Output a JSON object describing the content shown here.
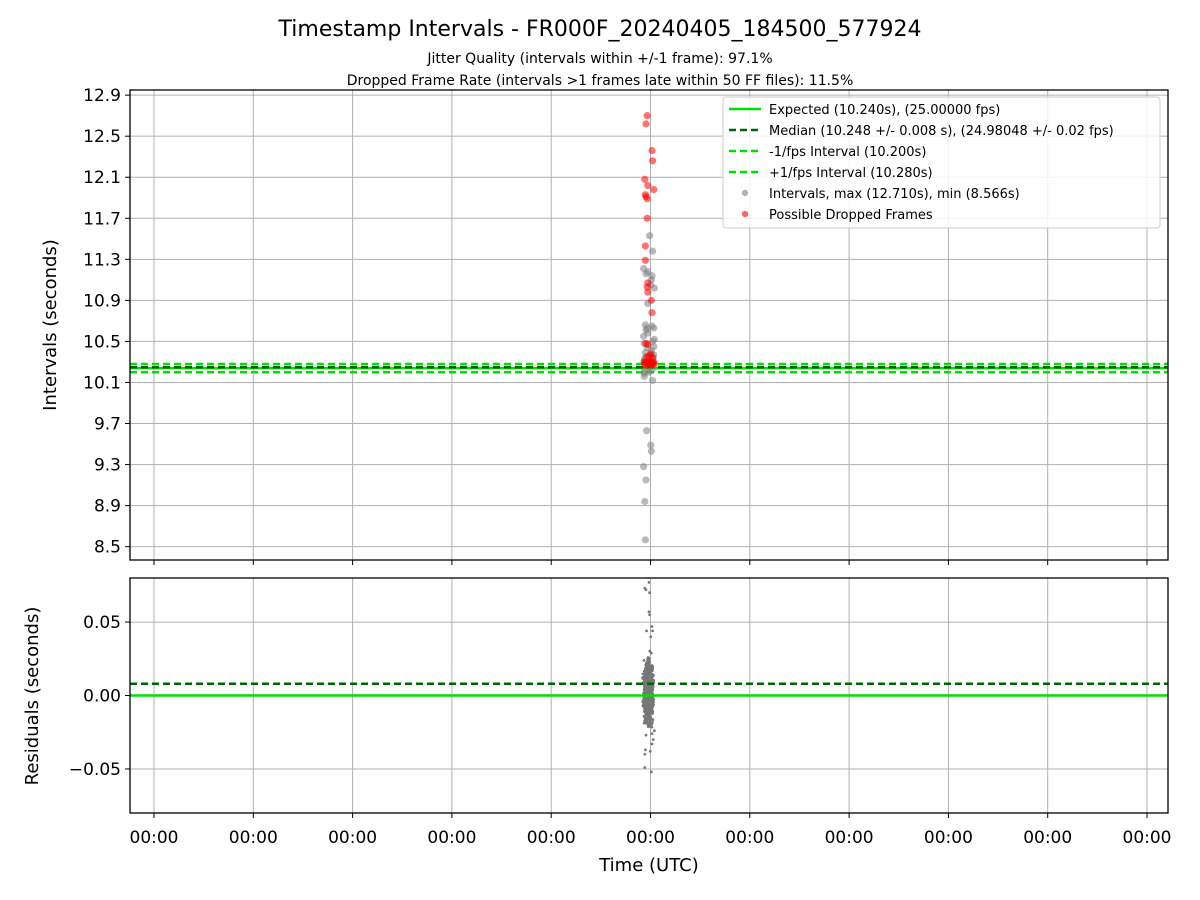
{
  "figure": {
    "title": "Timestamp Intervals - FR000F_20240405_184500_577924",
    "subtitle_1": "Jitter Quality (intervals within +/-1 frame): 97.1%",
    "subtitle_2": "Dropped Frame Rate (intervals >1 frames late within 50 FF files): 11.5%"
  },
  "chart_data": [
    {
      "type": "scatter",
      "panel": "intervals",
      "xlabel": "",
      "ylabel": "Intervals (seconds)",
      "ylim": [
        8.37,
        12.95
      ],
      "yticks": [
        "8.5",
        "8.9",
        "9.3",
        "9.7",
        "10.1",
        "10.5",
        "10.9",
        "11.3",
        "11.7",
        "12.1",
        "12.5",
        "12.9"
      ],
      "ytick_values": [
        8.5,
        8.9,
        9.3,
        9.7,
        10.1,
        10.5,
        10.9,
        11.3,
        11.7,
        12.1,
        12.5,
        12.9
      ],
      "xticks": [
        "00:00",
        "00:00",
        "00:00",
        "00:00",
        "00:00",
        "00:00",
        "00:00",
        "00:00",
        "00:00",
        "00:00",
        "00:00"
      ],
      "grid": true,
      "legend_position": "top-right",
      "hlines": [
        {
          "name": "Expected (10.240s), (25.00000 fps)",
          "y": 10.24,
          "style": "solid",
          "color": "#00e000"
        },
        {
          "name": "Median (10.248 +/- 0.008 s), (24.98048 +/- 0.02 fps)",
          "y": 10.248,
          "style": "dashed",
          "color": "#006400"
        },
        {
          "name": "-1/fps Interval (10.200s)",
          "y": 10.2,
          "style": "dashed",
          "color": "#00e000"
        },
        {
          "name": "+1/fps Interval (10.280s)",
          "y": 10.28,
          "style": "dashed",
          "color": "#00e000"
        }
      ],
      "series": [
        {
          "name": "Intervals, max (12.710s), min (8.566s)",
          "color": "#808080",
          "points": [
            [
              -0.06,
              8.566
            ],
            [
              -0.07,
              8.94
            ],
            [
              -0.05,
              9.15
            ],
            [
              -0.09,
              9.28
            ],
            [
              0.04,
              9.43
            ],
            [
              0.03,
              9.49
            ],
            [
              -0.04,
              9.63
            ],
            [
              -0.08,
              10.16
            ],
            [
              0.06,
              10.12
            ],
            [
              -0.08,
              10.19
            ],
            [
              -0.07,
              10.21
            ],
            [
              0.0,
              10.2
            ],
            [
              0.05,
              10.22
            ],
            [
              -0.08,
              10.31
            ],
            [
              -0.07,
              10.33
            ],
            [
              -0.05,
              10.35
            ],
            [
              0.03,
              10.36
            ],
            [
              0.07,
              10.34
            ],
            [
              0.08,
              10.37
            ],
            [
              -0.06,
              10.39
            ],
            [
              0.04,
              10.41
            ],
            [
              -0.03,
              10.44
            ],
            [
              0.08,
              10.45
            ],
            [
              -0.08,
              10.48
            ],
            [
              0.06,
              10.5
            ],
            [
              0.09,
              10.52
            ],
            [
              -0.09,
              10.55
            ],
            [
              -0.02,
              10.58
            ],
            [
              -0.05,
              10.61
            ],
            [
              -0.03,
              10.63
            ],
            [
              0.05,
              10.65
            ],
            [
              0.08,
              10.63
            ],
            [
              -0.06,
              10.66
            ],
            [
              -0.02,
              10.87
            ],
            [
              0.09,
              11.02
            ],
            [
              0.03,
              11.05
            ],
            [
              0.04,
              11.1
            ],
            [
              0.05,
              11.14
            ],
            [
              -0.05,
              11.16
            ],
            [
              -0.02,
              11.18
            ],
            [
              -0.09,
              11.21
            ],
            [
              0.06,
              11.38
            ],
            [
              0.01,
              11.53
            ]
          ]
        },
        {
          "name": "Possible Dropped Frames",
          "color": "#ff0000",
          "points": [
            [
              -0.05,
              12.62
            ],
            [
              -0.03,
              12.7
            ],
            [
              0.05,
              12.36
            ],
            [
              0.06,
              12.26
            ],
            [
              0.08,
              11.98
            ],
            [
              -0.02,
              12.02
            ],
            [
              -0.07,
              12.08
            ],
            [
              -0.06,
              11.93
            ],
            [
              -0.05,
              11.91
            ],
            [
              -0.03,
              11.89
            ],
            [
              -0.03,
              11.7
            ],
            [
              -0.06,
              11.43
            ],
            [
              -0.06,
              11.29
            ],
            [
              -0.02,
              11.07
            ],
            [
              -0.03,
              11.03
            ],
            [
              -0.02,
              10.98
            ],
            [
              0.04,
              10.9
            ],
            [
              0.05,
              10.78
            ],
            [
              -0.05,
              10.48
            ],
            [
              -0.02,
              10.47
            ],
            [
              0.03,
              10.38
            ],
            [
              0.01,
              10.36
            ],
            [
              -0.03,
              10.35
            ],
            [
              0.06,
              10.34
            ],
            [
              -0.08,
              10.3
            ],
            [
              -0.06,
              10.29
            ],
            [
              -0.04,
              10.29
            ],
            [
              -0.02,
              10.3
            ],
            [
              0.0,
              10.29
            ],
            [
              0.02,
              10.3
            ],
            [
              0.04,
              10.29
            ],
            [
              0.06,
              10.29
            ],
            [
              0.08,
              10.3
            ],
            [
              -0.07,
              10.28
            ],
            [
              -0.05,
              10.27
            ],
            [
              0.01,
              10.27
            ],
            [
              0.03,
              10.28
            ],
            [
              0.07,
              10.28
            ],
            [
              0.09,
              10.28
            ]
          ]
        }
      ]
    },
    {
      "type": "scatter",
      "panel": "residuals",
      "xlabel": "Time (UTC)",
      "ylabel": "Residuals (seconds)",
      "ylim": [
        -0.08,
        0.08
      ],
      "yticks": [
        "−0.05",
        "0.00",
        "0.05"
      ],
      "ytick_values": [
        -0.05,
        0.0,
        0.05
      ],
      "xticks": [
        "00:00",
        "00:00",
        "00:00",
        "00:00",
        "00:00",
        "00:00",
        "00:00",
        "00:00",
        "00:00",
        "00:00",
        "00:00"
      ],
      "grid": true,
      "hlines": [
        {
          "name": "Expected",
          "y": 0.0,
          "style": "solid",
          "color": "#00e000"
        },
        {
          "name": "Median",
          "y": 0.008,
          "style": "dashed",
          "color": "#006400"
        }
      ],
      "series": [
        {
          "name": "Residuals",
          "color": "#777777",
          "points": [
            [
              -0.07,
              0.073
            ],
            [
              -0.05,
              0.072
            ],
            [
              0.0,
              0.077
            ],
            [
              0.01,
              0.07
            ],
            [
              0.0,
              0.057
            ],
            [
              0.01,
              0.055
            ],
            [
              0.05,
              0.047
            ],
            [
              0.06,
              0.044
            ],
            [
              -0.04,
              0.044
            ],
            [
              0.03,
              0.04
            ],
            [
              -0.07,
              -0.049
            ],
            [
              0.04,
              -0.052
            ],
            [
              -0.07,
              -0.04
            ],
            [
              -0.06,
              -0.037
            ],
            [
              0.02,
              -0.038
            ],
            [
              0.05,
              -0.033
            ],
            [
              0.07,
              -0.03
            ],
            [
              0.05,
              -0.026
            ],
            [
              -0.05,
              -0.027
            ],
            [
              0.09,
              -0.024
            ]
          ],
          "cluster": {
            "x_range": [
              -0.12,
              0.1
            ],
            "y_range": [
              -0.03,
              0.035
            ],
            "count": 900
          }
        }
      ]
    }
  ]
}
